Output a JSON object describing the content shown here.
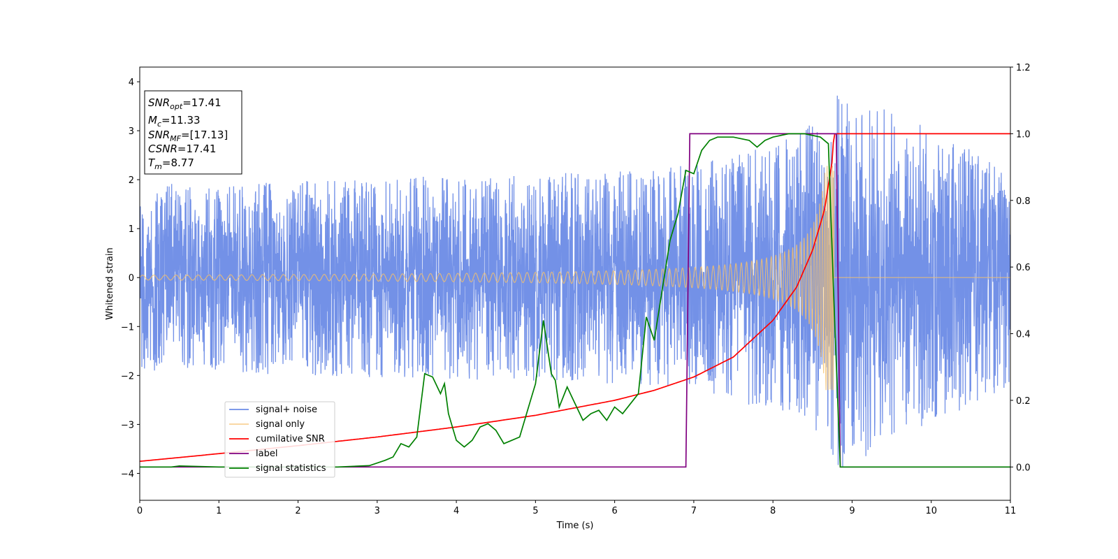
{
  "chart_data": {
    "type": "line",
    "xlabel": "Time (s)",
    "ylabel": "Whitened strain",
    "xlim": [
      0,
      11
    ],
    "ylim_left": [
      -4.55,
      4.3
    ],
    "ylim_right": [
      -0.1,
      1.2
    ],
    "x_ticks": [
      "0",
      "1",
      "2",
      "3",
      "4",
      "5",
      "6",
      "7",
      "8",
      "9",
      "10",
      "11"
    ],
    "y_ticks_left": [
      "−4",
      "−3",
      "−2",
      "−1",
      "0",
      "1",
      "2",
      "3",
      "4"
    ],
    "y_ticks_right": [
      "0.0",
      "0.2",
      "0.4",
      "0.6",
      "0.8",
      "1.0",
      "1.2"
    ],
    "grid": false,
    "legend_position": "lower-left",
    "info_box": {
      "snr_opt_value": "=17.41",
      "mc_value": "=11.33",
      "snr_mf_value": "=[17.13]",
      "csnr_value": "=17.41",
      "tm_value": "=8.77"
    },
    "series": [
      {
        "name": "signal+ noise",
        "color": "#6b8be6",
        "axis": "left",
        "description_amplitude": {
          "x": [
            0,
            6.5,
            7.5,
            8.7,
            8.77,
            11
          ],
          "envelope": [
            1.9,
            2.2,
            2.5,
            3.3,
            4.0,
            2.2
          ]
        }
      },
      {
        "name": "signal only",
        "color": "#f5c06b",
        "axis": "left",
        "chirp": {
          "t_merge": 8.77,
          "amp_start": 0.05,
          "amp_end": 2.3,
          "f_start": 7,
          "f_end": 60
        }
      },
      {
        "name": "cumilative SNR",
        "color": "#ff0000",
        "axis": "right",
        "x": [
          0,
          1,
          2,
          3,
          4,
          5,
          6,
          6.5,
          7,
          7.5,
          8,
          8.3,
          8.5,
          8.65,
          8.75,
          8.77,
          11
        ],
        "y": [
          0.017,
          0.04,
          0.064,
          0.09,
          0.12,
          0.155,
          0.2,
          0.23,
          0.27,
          0.33,
          0.44,
          0.54,
          0.65,
          0.77,
          0.92,
          1.0,
          1.0
        ]
      },
      {
        "name": "label",
        "color": "#800080",
        "axis": "right",
        "x": [
          0,
          6.9,
          6.95,
          8.8,
          8.85,
          11
        ],
        "y": [
          0,
          0,
          1,
          1,
          0,
          0
        ]
      },
      {
        "name": "signal statistics",
        "color": "#008000",
        "axis": "right",
        "x": [
          0,
          0.4,
          0.5,
          1,
          2,
          2.5,
          2.9,
          3.1,
          3.2,
          3.3,
          3.4,
          3.5,
          3.6,
          3.7,
          3.8,
          3.85,
          3.9,
          4.0,
          4.1,
          4.2,
          4.3,
          4.4,
          4.5,
          4.6,
          4.7,
          4.8,
          4.9,
          5.0,
          5.1,
          5.2,
          5.25,
          5.3,
          5.4,
          5.5,
          5.6,
          5.7,
          5.8,
          5.9,
          6.0,
          6.1,
          6.2,
          6.3,
          6.4,
          6.5,
          6.6,
          6.7,
          6.8,
          6.9,
          7.0,
          7.1,
          7.2,
          7.3,
          7.5,
          7.7,
          7.8,
          7.9,
          8.0,
          8.2,
          8.4,
          8.6,
          8.7,
          8.77,
          8.85,
          9.0,
          11
        ],
        "y": [
          0.0,
          0.0,
          0.003,
          0.0,
          0.0,
          0.0,
          0.004,
          0.02,
          0.03,
          0.07,
          0.06,
          0.09,
          0.28,
          0.27,
          0.22,
          0.25,
          0.16,
          0.08,
          0.06,
          0.08,
          0.12,
          0.13,
          0.11,
          0.07,
          0.08,
          0.09,
          0.17,
          0.25,
          0.44,
          0.28,
          0.26,
          0.18,
          0.24,
          0.19,
          0.14,
          0.16,
          0.17,
          0.14,
          0.18,
          0.16,
          0.19,
          0.22,
          0.45,
          0.38,
          0.53,
          0.68,
          0.76,
          0.89,
          0.88,
          0.95,
          0.98,
          0.99,
          0.99,
          0.98,
          0.96,
          0.98,
          0.99,
          1.0,
          1.0,
          0.99,
          0.97,
          0.5,
          0.0,
          0.0,
          0.0
        ]
      }
    ]
  }
}
